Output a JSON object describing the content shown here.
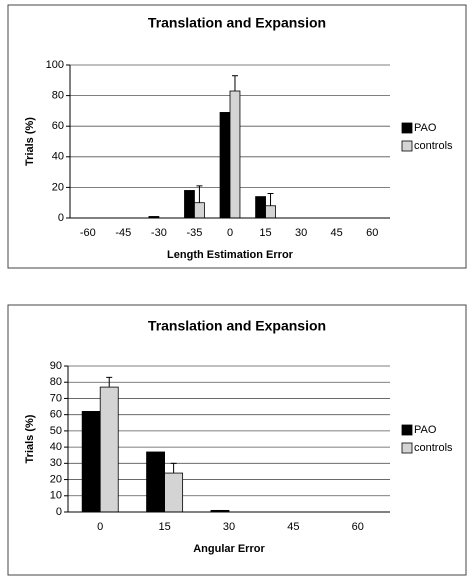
{
  "chart_data": [
    {
      "type": "bar",
      "title": "Translation and Expansion",
      "xlabel": "Length Estimation Error",
      "ylabel": "Trials (%)",
      "categories": [
        "-60",
        "-45",
        "-30",
        "-35",
        "0",
        "15",
        "30",
        "45",
        "60"
      ],
      "series": [
        {
          "name": "PAO",
          "color": "#000000",
          "values": [
            0,
            0,
            1,
            18,
            69,
            14,
            0,
            0,
            0
          ]
        },
        {
          "name": "controls",
          "color": "#d4d4d4",
          "values": [
            0,
            0,
            0,
            10,
            83,
            8,
            0,
            0,
            0
          ],
          "errors": [
            null,
            null,
            null,
            11,
            10,
            8,
            null,
            null,
            null
          ]
        }
      ],
      "ylim": [
        0,
        100
      ],
      "yticks": [
        0,
        20,
        40,
        60,
        80,
        100
      ],
      "grid": true,
      "legend": "right"
    },
    {
      "type": "bar",
      "title": "Translation and Expansion",
      "xlabel": "Angular Error",
      "ylabel": "Trials (%)",
      "categories": [
        "0",
        "15",
        "30",
        "45",
        "60"
      ],
      "series": [
        {
          "name": "PAO",
          "color": "#000000",
          "values": [
            62,
            37,
            1,
            0,
            0
          ]
        },
        {
          "name": "controls",
          "color": "#d4d4d4",
          "values": [
            77,
            24,
            0,
            0,
            0
          ],
          "errors": [
            6,
            6,
            null,
            null,
            null
          ]
        }
      ],
      "ylim": [
        0,
        90
      ],
      "yticks": [
        0,
        10,
        20,
        30,
        40,
        50,
        60,
        70,
        80,
        90
      ],
      "grid": true,
      "legend": "right"
    }
  ]
}
